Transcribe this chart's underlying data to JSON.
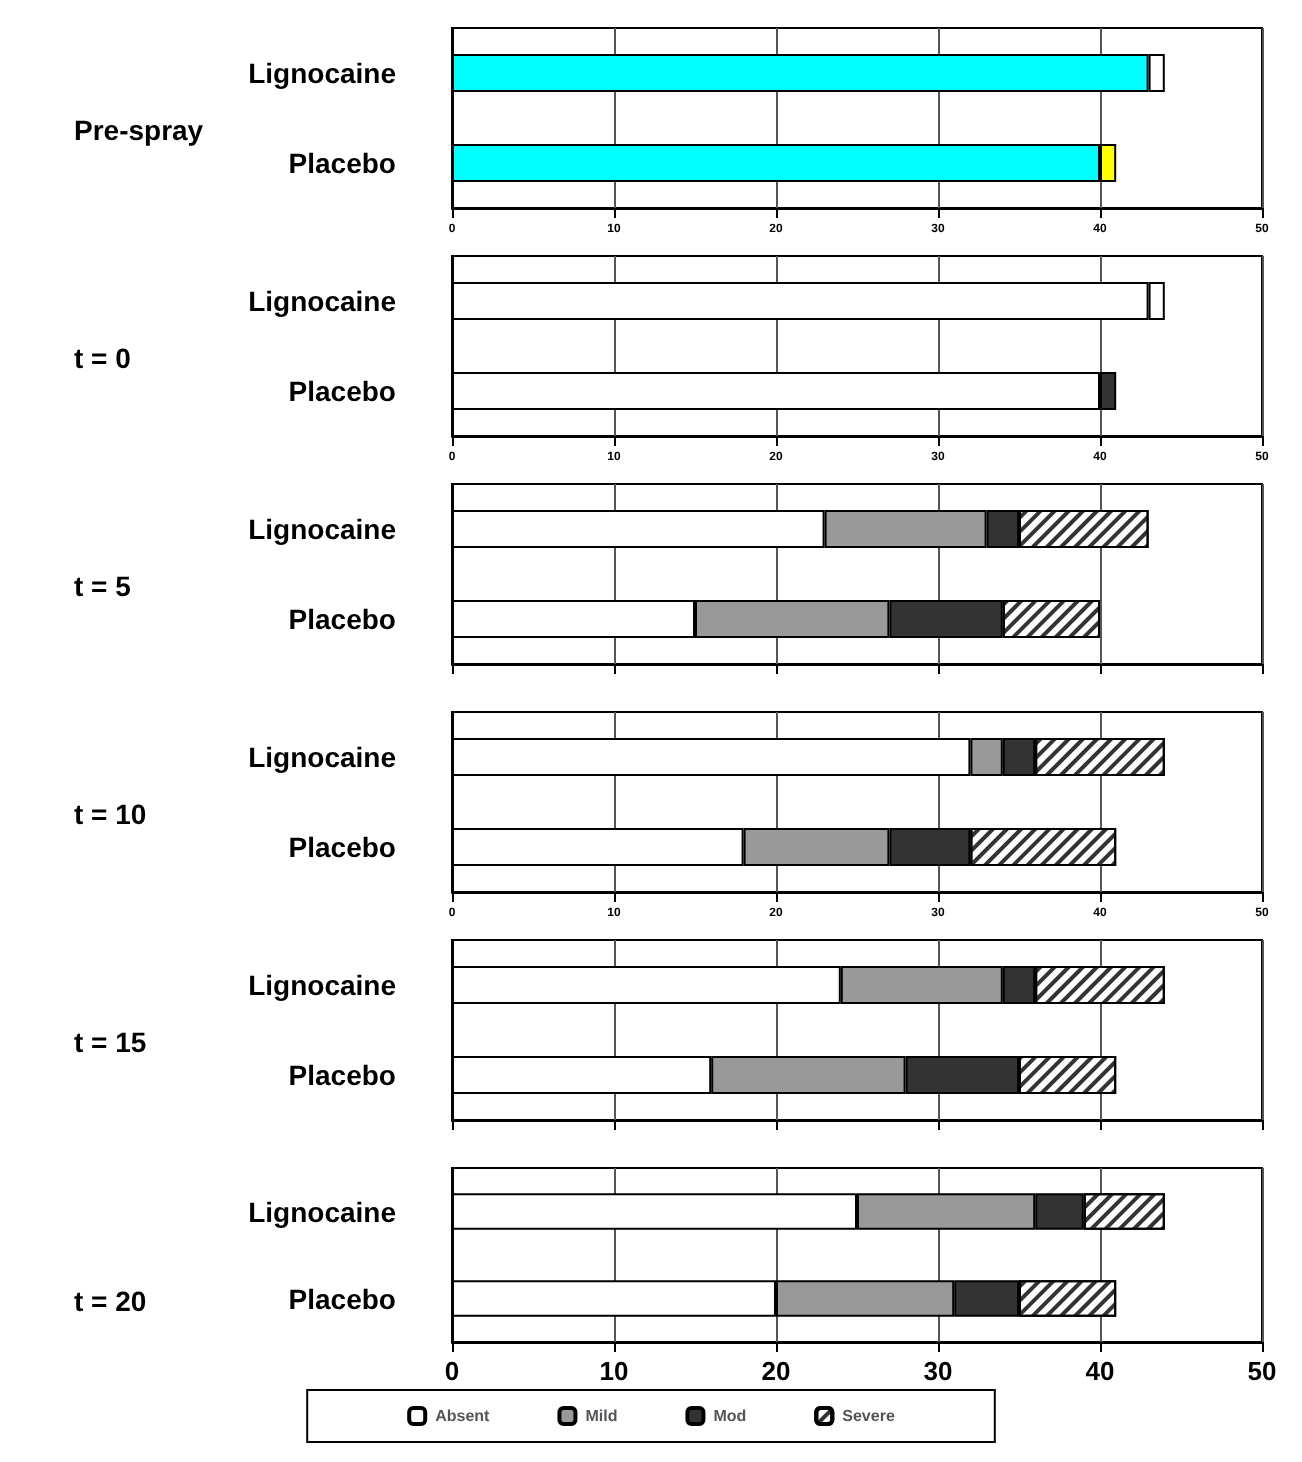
{
  "chart_data": [
    {
      "type": "bar",
      "orientation": "horizontal",
      "stacked": true,
      "title": "Pre-spray",
      "categories": [
        "Lignocaine",
        "Placebo"
      ],
      "xlim": [
        0,
        50
      ],
      "xticks": [
        0,
        10,
        20,
        30,
        40,
        50
      ],
      "grid": "x",
      "series": [
        {
          "color": "#00ffff",
          "values": [
            43,
            40
          ]
        },
        {
          "color": "#ffffff",
          "values": [
            1,
            null
          ]
        },
        {
          "color": "#ffff00",
          "values": [
            null,
            1
          ]
        }
      ]
    },
    {
      "type": "bar",
      "orientation": "horizontal",
      "stacked": true,
      "title": "t = 0",
      "categories": [
        "Lignocaine",
        "Placebo"
      ],
      "xlim": [
        0,
        50
      ],
      "xticks": [
        0,
        10,
        20,
        30,
        40,
        50
      ],
      "grid": "x",
      "series": [
        {
          "color": "#ffffff",
          "values": [
            43,
            40
          ]
        },
        {
          "color": "#ffffff",
          "values": [
            1,
            null
          ]
        },
        {
          "color": "#333333",
          "values": [
            null,
            1
          ]
        }
      ]
    },
    {
      "type": "bar",
      "orientation": "horizontal",
      "stacked": true,
      "title": "t = 5",
      "categories": [
        "Lignocaine",
        "Placebo"
      ],
      "xlim": [
        0,
        50
      ],
      "xticks": [
        0,
        10,
        20,
        30,
        40,
        50
      ],
      "grid": "x",
      "tick_labels": "y",
      "series": [
        {
          "color": "#ffffff",
          "values": [
            23,
            15
          ]
        },
        {
          "color": "#999999",
          "values": [
            10,
            12
          ]
        },
        {
          "color": "#333333",
          "values": [
            2,
            7
          ]
        },
        {
          "color": "#ffffff",
          "values": [
            8,
            6
          ]
        }
      ]
    },
    {
      "type": "bar",
      "orientation": "horizontal",
      "stacked": true,
      "title": "t = 10",
      "categories": [
        "Lignocaine",
        "Placebo"
      ],
      "xlim": [
        0,
        50
      ],
      "xticks": [
        0,
        10,
        20,
        30,
        40,
        50
      ],
      "grid": "x",
      "series": [
        {
          "color": "#ffffff",
          "values": [
            32,
            18
          ]
        },
        {
          "color": "#999999",
          "values": [
            2,
            9
          ]
        },
        {
          "color": "#333333",
          "values": [
            2,
            5
          ]
        },
        {
          "color": "#ffffff",
          "values": [
            8,
            9
          ]
        }
      ]
    },
    {
      "type": "bar",
      "orientation": "horizontal",
      "stacked": true,
      "title": "t = 15",
      "categories": [
        "Lignocaine",
        "Placebo"
      ],
      "xlim": [
        0,
        50
      ],
      "xticks": [
        0,
        10,
        20,
        30,
        40,
        50
      ],
      "grid": "x",
      "tick_labels": "y",
      "series": [
        {
          "color": "#ffffff",
          "values": [
            24,
            16
          ]
        },
        {
          "color": "#999999",
          "values": [
            10,
            12
          ]
        },
        {
          "color": "#333333",
          "values": [
            2,
            7
          ]
        },
        {
          "color": "#ffffff",
          "values": [
            8,
            6
          ]
        }
      ]
    },
    {
      "type": "bar",
      "orientation": "horizontal",
      "stacked": true,
      "title": "t = 20",
      "categories": [
        "Lignocaine",
        "Placebo"
      ],
      "xlim": [
        0,
        50
      ],
      "xticks": [
        0,
        10,
        20,
        30,
        40,
        50
      ],
      "grid": "x",
      "legend": "bottom",
      "series": [
        {
          "name": "Absent",
          "color": "#ffffff",
          "values": [
            25,
            20
          ]
        },
        {
          "name": "Mild",
          "color": "#999999",
          "values": [
            11,
            11
          ]
        },
        {
          "name": "Mod",
          "color": "#333333",
          "values": [
            3,
            4
          ]
        },
        {
          "name": "Severe",
          "color": "#ffffff",
          "values": [
            5,
            6
          ]
        }
      ]
    }
  ]
}
